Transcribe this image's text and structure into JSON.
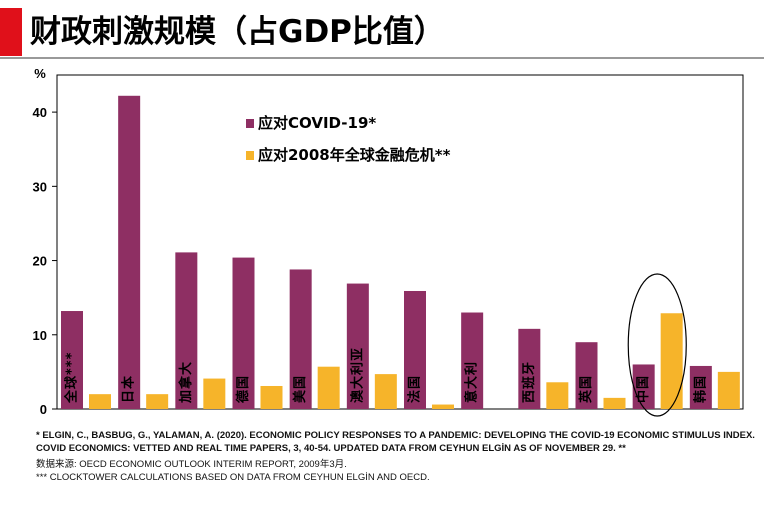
{
  "page_title": "财政刺激规模（占GDP比值）",
  "chart_data": {
    "type": "bar",
    "ylabel": "%",
    "ylim": [
      0,
      45
    ],
    "yticks": [
      0,
      10,
      20,
      30,
      40
    ],
    "categories": [
      "全球***",
      "日本",
      "加拿大",
      "德国",
      "美国",
      "澳大利亚",
      "法国",
      "意大利",
      "西班牙",
      "英国",
      "中国",
      "韩国"
    ],
    "series": [
      {
        "name": "应对COVID-19*",
        "color": "#8e2f63",
        "values": [
          13.2,
          42.2,
          21.1,
          20.4,
          18.8,
          16.9,
          15.9,
          13.0,
          10.8,
          9.0,
          6.0,
          5.8
        ]
      },
      {
        "name": "应对2008年全球金融危机**",
        "color": "#f6b42a",
        "values": [
          2.0,
          2.0,
          4.1,
          3.1,
          5.7,
          4.7,
          0.6,
          0.0,
          3.6,
          1.5,
          12.9,
          5.0
        ]
      }
    ],
    "highlight_category": "中国"
  },
  "footnotes": {
    "note1": "*   ELGIN, C., BASBUG, G., YALAMAN,  A. (2020). ECONOMIC POLICY RESPONSES TO A PANDEMIC: DEVELOPING  THE COVID-19 ECONOMIC STIMULUS INDEX. COVID ECONOMICS: VETTED AND REAL TIME PAPERS,  3,  40-54.  UPDATED DATA  FROM CEYHUN ELGİN AS  OF NOVEMBER 29. **",
    "note2": "数据来源: OECD ECONOMIC OUTLOOK INTERIM REPORT, 2009年3月.",
    "note3": "***  CLOCKTOWER CALCULATIONS BASED ON DATA FROM CEYHUN ELGİN AND OECD."
  },
  "colors": {
    "accent": "#e0101a",
    "covid": "#8e2f63",
    "gfc": "#f6b42a"
  }
}
